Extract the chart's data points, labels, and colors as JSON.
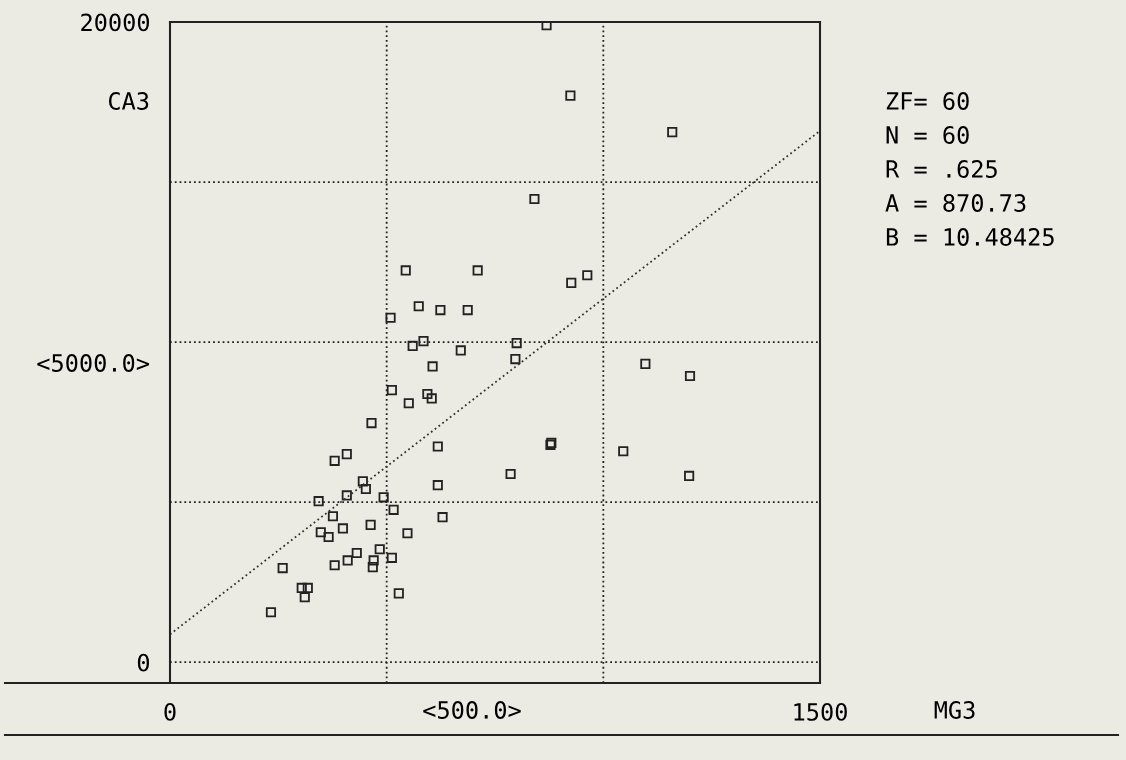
{
  "chart_data": {
    "type": "scatter",
    "xlabel": "MG3",
    "ylabel": "CA3",
    "xlim": [
      0,
      1500
    ],
    "ylim": [
      -650,
      20000
    ],
    "xticks": [
      0,
      {
        "value": 500,
        "label": null
      },
      {
        "value": 1000,
        "label": null
      },
      1500
    ],
    "yticks": [
      0,
      {
        "value": 5000,
        "label": null
      },
      {
        "value": 10000,
        "label": null
      },
      {
        "value": 15000,
        "label": null
      },
      20000
    ],
    "grid": true,
    "marker": "square",
    "annotations": [
      "<500.0>",
      "<5000.0>",
      "ZF= 60",
      "N = 60",
      "R = .625",
      "A = 870.73",
      "B = 10.48425"
    ],
    "series": [
      {
        "color": "#222222",
        "x": [
          869,
          924,
          1159,
          841,
          544,
          710,
          926,
          963,
          574,
          624,
          687,
          509,
          585,
          560,
          800,
          671,
          797,
          606,
          1097,
          1200,
          512,
          594,
          604,
          551,
          465,
          618,
          878,
          1046,
          408,
          380,
          786,
          1198,
          445,
          452,
          618,
          408,
          343,
          493,
          516,
          376,
          629,
          463,
          348,
          399,
          366,
          548,
          484,
          431,
          410,
          380,
          512,
          470,
          468,
          260,
          304,
          318,
          311,
          528,
          233,
          880
        ],
        "values": [
          19900,
          17700,
          16560,
          14470,
          12240,
          12240,
          11850,
          12090,
          11120,
          11000,
          11000,
          10760,
          10030,
          9880,
          9970,
          9740,
          9470,
          9240,
          9320,
          8940,
          8500,
          8380,
          8240,
          8090,
          7470,
          6740,
          6790,
          6590,
          6500,
          6290,
          5880,
          5820,
          5650,
          5410,
          5530,
          5210,
          5030,
          5150,
          4760,
          4560,
          4530,
          4290,
          4060,
          4180,
          3910,
          4030,
          3530,
          3410,
          3180,
          3030,
          3260,
          3180,
          2970,
          2940,
          2320,
          2320,
          2030,
          2150,
          1560,
          6850
        ]
      },
      {
        "type": "line",
        "color": "#333333",
        "line_style": "dotted",
        "marker": "none",
        "x": [
          0,
          1500
        ],
        "values": [
          870,
          16600
        ]
      }
    ]
  }
}
